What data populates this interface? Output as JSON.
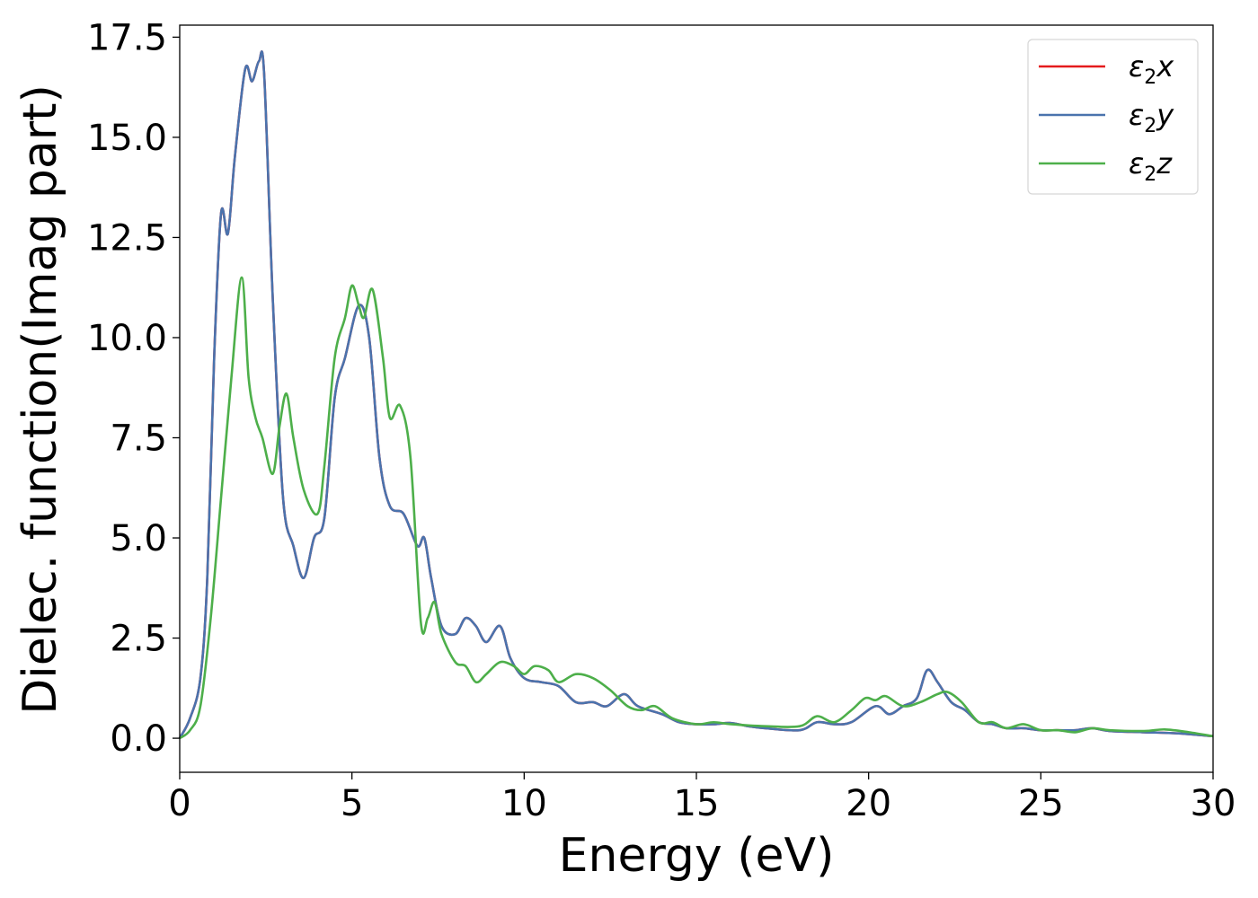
{
  "chart_data": {
    "type": "line",
    "xlabel": "Energy (eV)",
    "ylabel": "Dielec. function(Imag part)",
    "xlim": [
      0,
      30
    ],
    "ylim": [
      -0.85,
      17.8
    ],
    "xticks": [
      "0",
      "5",
      "10",
      "15",
      "20",
      "25",
      "30"
    ],
    "yticks": [
      "0.0",
      "2.5",
      "5.0",
      "7.5",
      "10.0",
      "12.5",
      "15.0",
      "17.5"
    ],
    "grid": false,
    "legend_position": "top-right",
    "series": [
      {
        "name": "x",
        "label_prefix": "ε",
        "label_sub": "2",
        "label_suffix": "x",
        "color": "#e41a1c",
        "x": [
          0,
          0.3,
          0.6,
          0.8,
          1.0,
          1.2,
          1.4,
          1.6,
          1.9,
          2.1,
          2.3,
          2.45,
          2.7,
          3.0,
          3.3,
          3.6,
          3.9,
          4.2,
          4.5,
          4.8,
          5.2,
          5.5,
          5.8,
          6.1,
          6.5,
          6.9,
          7.1,
          7.3,
          7.6,
          8.0,
          8.3,
          8.6,
          8.9,
          9.3,
          9.6,
          10.0,
          10.5,
          11.0,
          11.5,
          12.0,
          12.4,
          12.9,
          13.3,
          14.0,
          14.5,
          15.0,
          15.5,
          16.0,
          16.5,
          17.0,
          18.0,
          18.5,
          19.0,
          19.5,
          20.2,
          20.6,
          21.0,
          21.4,
          21.7,
          22.0,
          22.4,
          22.8,
          23.2,
          23.6,
          24.0,
          24.5,
          25.0,
          25.5,
          26.0,
          26.5,
          27.0,
          28.0,
          29.0,
          30.0
        ],
        "y": [
          0.0,
          0.5,
          1.5,
          4.0,
          9.5,
          13.1,
          12.6,
          14.5,
          16.7,
          16.4,
          16.9,
          16.6,
          11.0,
          6.0,
          4.8,
          4.0,
          5.0,
          5.5,
          8.5,
          9.5,
          10.8,
          10.0,
          7.0,
          5.8,
          5.6,
          4.8,
          5.0,
          4.0,
          2.8,
          2.6,
          3.0,
          2.8,
          2.4,
          2.8,
          2.0,
          1.5,
          1.4,
          1.3,
          0.9,
          0.9,
          0.8,
          1.1,
          0.8,
          0.6,
          0.4,
          0.35,
          0.35,
          0.38,
          0.3,
          0.25,
          0.2,
          0.4,
          0.35,
          0.4,
          0.8,
          0.6,
          0.8,
          1.0,
          1.7,
          1.4,
          0.9,
          0.7,
          0.4,
          0.35,
          0.25,
          0.25,
          0.2,
          0.2,
          0.2,
          0.25,
          0.18,
          0.15,
          0.12,
          0.05
        ]
      },
      {
        "name": "y",
        "label_prefix": "ε",
        "label_sub": "2",
        "label_suffix": "y",
        "color": "#4a73ad",
        "x": [
          0,
          0.3,
          0.6,
          0.8,
          1.0,
          1.2,
          1.4,
          1.6,
          1.9,
          2.1,
          2.3,
          2.45,
          2.7,
          3.0,
          3.3,
          3.6,
          3.9,
          4.2,
          4.5,
          4.8,
          5.2,
          5.5,
          5.8,
          6.1,
          6.5,
          6.9,
          7.1,
          7.3,
          7.6,
          8.0,
          8.3,
          8.6,
          8.9,
          9.3,
          9.6,
          10.0,
          10.5,
          11.0,
          11.5,
          12.0,
          12.4,
          12.9,
          13.3,
          14.0,
          14.5,
          15.0,
          15.5,
          16.0,
          16.5,
          17.0,
          18.0,
          18.5,
          19.0,
          19.5,
          20.2,
          20.6,
          21.0,
          21.4,
          21.7,
          22.0,
          22.4,
          22.8,
          23.2,
          23.6,
          24.0,
          24.5,
          25.0,
          25.5,
          26.0,
          26.5,
          27.0,
          28.0,
          29.0,
          30.0
        ],
        "y": [
          0.0,
          0.5,
          1.5,
          4.0,
          9.5,
          13.1,
          12.6,
          14.5,
          16.7,
          16.4,
          16.9,
          16.6,
          11.0,
          6.0,
          4.8,
          4.0,
          5.0,
          5.5,
          8.5,
          9.5,
          10.8,
          10.0,
          7.0,
          5.8,
          5.6,
          4.8,
          5.0,
          4.0,
          2.8,
          2.6,
          3.0,
          2.8,
          2.4,
          2.8,
          2.0,
          1.5,
          1.4,
          1.3,
          0.9,
          0.9,
          0.8,
          1.1,
          0.8,
          0.6,
          0.4,
          0.35,
          0.35,
          0.38,
          0.3,
          0.25,
          0.2,
          0.4,
          0.35,
          0.4,
          0.8,
          0.6,
          0.8,
          1.0,
          1.7,
          1.4,
          0.9,
          0.7,
          0.4,
          0.35,
          0.25,
          0.25,
          0.2,
          0.2,
          0.2,
          0.25,
          0.18,
          0.15,
          0.12,
          0.05
        ]
      },
      {
        "name": "z",
        "label_prefix": "ε",
        "label_sub": "2",
        "label_suffix": "z",
        "color": "#4daf4a",
        "x": [
          0,
          0.3,
          0.6,
          0.9,
          1.2,
          1.5,
          1.8,
          2.0,
          2.2,
          2.4,
          2.7,
          2.9,
          3.1,
          3.3,
          3.6,
          4.0,
          4.2,
          4.5,
          4.8,
          5.0,
          5.2,
          5.35,
          5.6,
          5.9,
          6.1,
          6.4,
          6.7,
          7.0,
          7.2,
          7.4,
          7.6,
          8.0,
          8.3,
          8.6,
          8.9,
          9.3,
          9.7,
          10.0,
          10.3,
          10.7,
          11.0,
          11.5,
          12.0,
          12.5,
          13.0,
          13.4,
          13.8,
          14.3,
          15.0,
          15.5,
          16.0,
          17.0,
          18.0,
          18.5,
          19.0,
          19.5,
          19.9,
          20.2,
          20.5,
          21.0,
          21.5,
          22.0,
          22.3,
          22.7,
          23.2,
          23.6,
          24.0,
          24.5,
          25.0,
          25.5,
          26.0,
          26.5,
          27.0,
          28.0,
          28.6,
          29.3,
          30.0
        ],
        "y": [
          0.0,
          0.2,
          0.8,
          3.0,
          6.0,
          9.0,
          11.5,
          9.0,
          8.0,
          7.5,
          6.6,
          7.8,
          8.6,
          7.5,
          6.2,
          5.6,
          6.8,
          9.5,
          10.5,
          11.3,
          10.8,
          10.5,
          11.2,
          9.5,
          8.0,
          8.3,
          7.0,
          2.9,
          3.0,
          3.4,
          2.6,
          1.9,
          1.8,
          1.4,
          1.6,
          1.9,
          1.8,
          1.6,
          1.8,
          1.7,
          1.4,
          1.6,
          1.5,
          1.2,
          0.8,
          0.7,
          0.8,
          0.5,
          0.35,
          0.4,
          0.35,
          0.3,
          0.3,
          0.55,
          0.4,
          0.7,
          1.0,
          0.95,
          1.05,
          0.8,
          0.9,
          1.1,
          1.15,
          0.9,
          0.4,
          0.4,
          0.25,
          0.35,
          0.2,
          0.2,
          0.15,
          0.25,
          0.2,
          0.18,
          0.22,
          0.15,
          0.05
        ]
      }
    ]
  }
}
